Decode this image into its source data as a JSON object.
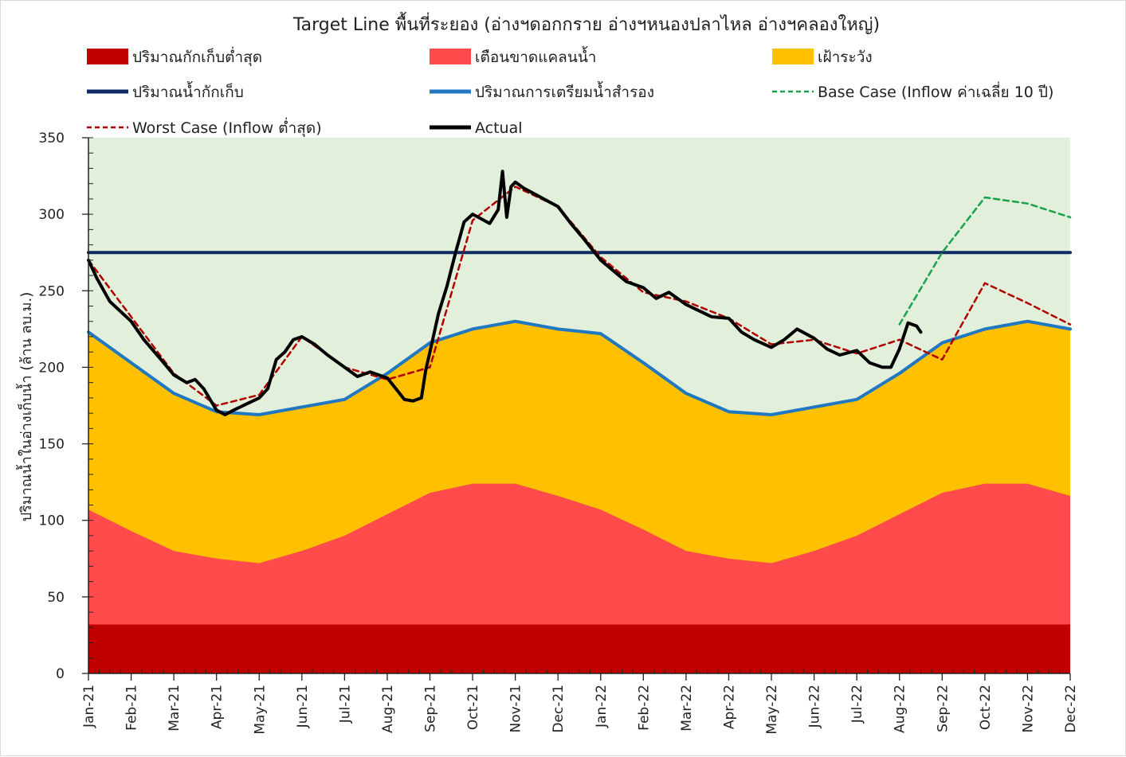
{
  "chart_data": {
    "type": "area",
    "title": "Target Line พื้นที่ระยอง (อ่างฯดอกกราย อ่างฯหนองปลาไหล อ่างฯคลองใหญ่)",
    "ylabel": "ปริมาณน้ำในอ่างเก็บน้ำ (ล้าน ลบ.ม.)",
    "xlabel": "",
    "ylim": [
      0,
      350
    ],
    "yticks": [
      0,
      50,
      100,
      150,
      200,
      250,
      300,
      350
    ],
    "grid": false,
    "legend_position": "top",
    "categories": [
      "Jan-21",
      "Feb-21",
      "Mar-21",
      "Apr-21",
      "May-21",
      "Jun-21",
      "Jul-21",
      "Aug-21",
      "Sep-21",
      "Oct-21",
      "Nov-21",
      "Dec-21",
      "Jan-22",
      "Feb-22",
      "Mar-22",
      "Apr-22",
      "May-22",
      "Jun-22",
      "Jul-22",
      "Aug-22",
      "Sep-22",
      "Oct-22",
      "Nov-22",
      "Dec-22"
    ],
    "background_band": {
      "from": 0,
      "to": 350,
      "color": "#e2efda"
    },
    "series": [
      {
        "name": "ปริมาณกักเก็บต่ำสุด",
        "kind": "area",
        "color": "#c00000",
        "values": [
          32,
          32,
          32,
          32,
          32,
          32,
          32,
          32,
          32,
          32,
          32,
          32,
          32,
          32,
          32,
          32,
          32,
          32,
          32,
          32,
          32,
          32,
          32,
          32
        ]
      },
      {
        "name": "เตือนขาดแคลนน้ำ",
        "kind": "area",
        "color": "#ff4b4b",
        "values": [
          107,
          93,
          80,
          75,
          72,
          80,
          90,
          104,
          118,
          124,
          124,
          116,
          107,
          94,
          80,
          75,
          72,
          80,
          90,
          104,
          118,
          124,
          124,
          116
        ]
      },
      {
        "name": "เฝ้าระวัง",
        "kind": "area",
        "color": "#ffc000",
        "values": [
          223,
          203,
          183,
          171,
          169,
          174,
          179,
          196,
          216,
          225,
          230,
          225,
          222,
          203,
          183,
          171,
          169,
          174,
          179,
          196,
          216,
          225,
          230,
          225
        ]
      },
      {
        "name": "ปริมาณน้ำกักเก็บ",
        "kind": "line",
        "color": "#0d2b66",
        "dash": "none",
        "width": 4,
        "values": [
          275,
          275,
          275,
          275,
          275,
          275,
          275,
          275,
          275,
          275,
          275,
          275,
          275,
          275,
          275,
          275,
          275,
          275,
          275,
          275,
          275,
          275,
          275,
          275
        ]
      },
      {
        "name": "ปริมาณการเตรียมน้ำสำรอง",
        "kind": "line",
        "color": "#1f78c1",
        "dash": "none",
        "width": 4,
        "values": [
          223,
          203,
          183,
          171,
          169,
          174,
          179,
          196,
          216,
          225,
          230,
          225,
          222,
          203,
          183,
          171,
          169,
          174,
          179,
          196,
          216,
          225,
          230,
          225
        ]
      },
      {
        "name": "Base Case (Inflow ค่าเฉลี่ย 10 ปี)",
        "kind": "line",
        "color": "#16a34a",
        "dash": "7,5",
        "width": 2.5,
        "points": [
          [
            "Aug-22",
            228
          ],
          [
            "Sep-22",
            275
          ],
          [
            "Oct-22",
            311
          ],
          [
            "Nov-22",
            307
          ],
          [
            "Dec-22",
            298
          ]
        ]
      },
      {
        "name": "Worst Case (Inflow ต่ำสุด)",
        "kind": "line",
        "color": "#b00000",
        "dash": "7,5",
        "width": 2.5,
        "points": [
          [
            "Jan-21",
            270
          ],
          [
            "Feb-21",
            233
          ],
          [
            "Mar-21",
            196
          ],
          [
            "Apr-21",
            175
          ],
          [
            "May-21",
            182
          ],
          [
            "Jun-21",
            220
          ],
          [
            "Jul-21",
            200
          ],
          [
            "Aug-21",
            192
          ],
          [
            "Sep-21",
            200
          ],
          [
            "Oct-21",
            296
          ],
          [
            "Nov-21",
            318
          ],
          [
            "Dec-21",
            305
          ],
          [
            "Jan-22",
            272
          ],
          [
            "Feb-22",
            249
          ],
          [
            "Mar-22",
            243
          ],
          [
            "Apr-22",
            232
          ],
          [
            "May-22",
            215
          ],
          [
            "Jun-22",
            218
          ],
          [
            "Jul-22",
            209
          ],
          [
            "Aug-22",
            218
          ],
          [
            "Sep-22",
            205
          ],
          [
            "Oct-22",
            255
          ],
          [
            "Nov-22",
            242
          ],
          [
            "Dec-22",
            228
          ]
        ]
      },
      {
        "name": "Actual",
        "kind": "line",
        "color": "#000000",
        "dash": "none",
        "width": 4,
        "points": [
          [
            "Jan-21",
            270
          ],
          [
            "Jan-21+0.2",
            258
          ],
          [
            "Jan-21+0.5",
            243
          ],
          [
            "Feb-21",
            230
          ],
          [
            "Feb-21+0.3",
            218
          ],
          [
            "Feb-21+0.7",
            205
          ],
          [
            "Mar-21",
            195
          ],
          [
            "Mar-21+0.3",
            190
          ],
          [
            "Mar-21+0.5",
            192
          ],
          [
            "Mar-21+0.7",
            186
          ],
          [
            "Apr-21",
            172
          ],
          [
            "Apr-21+0.2",
            169
          ],
          [
            "Apr-21+0.4",
            172
          ],
          [
            "Apr-21+0.7",
            176
          ],
          [
            "May-21",
            180
          ],
          [
            "May-21+0.2",
            186
          ],
          [
            "May-21+0.4",
            205
          ],
          [
            "May-21+0.6",
            210
          ],
          [
            "May-21+0.8",
            218
          ],
          [
            "Jun-21",
            220
          ],
          [
            "Jun-21+0.3",
            215
          ],
          [
            "Jun-21+0.6",
            208
          ],
          [
            "Jul-21",
            200
          ],
          [
            "Jul-21+0.3",
            194
          ],
          [
            "Jul-21+0.6",
            197
          ],
          [
            "Aug-21",
            193
          ],
          [
            "Aug-21+0.2",
            186
          ],
          [
            "Aug-21+0.4",
            179
          ],
          [
            "Aug-21+0.6",
            178
          ],
          [
            "Aug-21+0.8",
            180
          ],
          [
            "Aug-21+0.9",
            198
          ],
          [
            "Sep-21",
            210
          ],
          [
            "Sep-21+0.2",
            235
          ],
          [
            "Sep-21+0.4",
            253
          ],
          [
            "Sep-21+0.6",
            275
          ],
          [
            "Sep-21+0.8",
            295
          ],
          [
            "Oct-21",
            300
          ],
          [
            "Oct-21+0.2",
            297
          ],
          [
            "Oct-21+0.4",
            294
          ],
          [
            "Oct-21+0.6",
            303
          ],
          [
            "Oct-21+0.7",
            328
          ],
          [
            "Oct-21+0.8",
            298
          ],
          [
            "Oct-21+0.9",
            318
          ],
          [
            "Nov-21",
            321
          ],
          [
            "Nov-21+0.2",
            317
          ],
          [
            "Nov-21+0.4",
            314
          ],
          [
            "Nov-21+0.6",
            311
          ],
          [
            "Nov-21+0.8",
            308
          ],
          [
            "Dec-21",
            305
          ],
          [
            "Dec-21+0.3",
            294
          ],
          [
            "Dec-21+0.6",
            284
          ],
          [
            "Jan-22",
            270
          ],
          [
            "Jan-22+0.3",
            263
          ],
          [
            "Jan-22+0.6",
            256
          ],
          [
            "Feb-22",
            252
          ],
          [
            "Feb-22+0.3",
            245
          ],
          [
            "Feb-22+0.6",
            249
          ],
          [
            "Mar-22",
            241
          ],
          [
            "Mar-22+0.3",
            237
          ],
          [
            "Mar-22+0.6",
            233
          ],
          [
            "Apr-22",
            232
          ],
          [
            "Apr-22+0.3",
            223
          ],
          [
            "Apr-22+0.6",
            218
          ],
          [
            "May-22",
            213
          ],
          [
            "May-22+0.3",
            218
          ],
          [
            "May-22+0.6",
            225
          ],
          [
            "Jun-22",
            219
          ],
          [
            "Jun-22+0.3",
            212
          ],
          [
            "Jun-22+0.6",
            208
          ],
          [
            "Jul-22",
            211
          ],
          [
            "Jul-22+0.3",
            203
          ],
          [
            "Jul-22+0.6",
            200
          ],
          [
            "Jul-22+0.8",
            200
          ],
          [
            "Aug-22",
            212
          ],
          [
            "Aug-22+0.2",
            229
          ],
          [
            "Aug-22+0.4",
            227
          ],
          [
            "Aug-22+0.5",
            223
          ]
        ]
      }
    ]
  }
}
